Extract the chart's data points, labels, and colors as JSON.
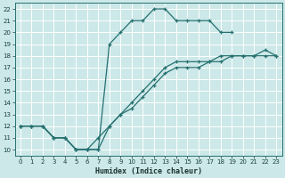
{
  "xlabel": "Humidex (Indice chaleur)",
  "bg_color": "#cce8e8",
  "grid_color": "#ffffff",
  "line_color": "#267070",
  "xlim": [
    -0.5,
    23.5
  ],
  "ylim": [
    9.5,
    22.5
  ],
  "xticks": [
    0,
    1,
    2,
    3,
    4,
    5,
    6,
    7,
    8,
    9,
    10,
    11,
    12,
    13,
    14,
    15,
    16,
    17,
    18,
    19,
    20,
    21,
    22,
    23
  ],
  "yticks": [
    10,
    11,
    12,
    13,
    14,
    15,
    16,
    17,
    18,
    19,
    20,
    21,
    22
  ],
  "curve1_x": [
    0,
    1,
    2,
    3,
    4,
    5,
    6,
    7,
    8,
    9,
    10,
    11,
    12,
    13,
    14,
    15,
    16,
    17,
    18,
    19
  ],
  "curve1_y": [
    12,
    12,
    12,
    11,
    11,
    10,
    10,
    10,
    19,
    20,
    21,
    21,
    22,
    22,
    21,
    21,
    21,
    21,
    20,
    20
  ],
  "curve2_x": [
    0,
    1,
    2,
    3,
    4,
    5,
    6,
    7,
    8,
    9,
    10,
    11,
    12,
    13,
    14,
    15,
    16,
    17,
    18,
    19,
    20,
    21,
    22,
    23
  ],
  "curve2_y": [
    12,
    12,
    12,
    11,
    11,
    10,
    10,
    10,
    12,
    13,
    14,
    15,
    16,
    17,
    17.5,
    17.5,
    17.5,
    17.5,
    18,
    18,
    18,
    18,
    18,
    18
  ],
  "curve3_x": [
    0,
    1,
    2,
    3,
    4,
    5,
    6,
    7,
    8,
    9,
    10,
    11,
    12,
    13,
    14,
    15,
    16,
    17,
    18,
    19,
    20,
    21,
    22,
    23
  ],
  "curve3_y": [
    12,
    12,
    12,
    11,
    11,
    10,
    10,
    11,
    12,
    13,
    13.5,
    14.5,
    15.5,
    16.5,
    17,
    17,
    17,
    17.5,
    17.5,
    18,
    18,
    18,
    18.5,
    18
  ],
  "xlabel_fontsize": 6,
  "tick_labelsize": 5
}
